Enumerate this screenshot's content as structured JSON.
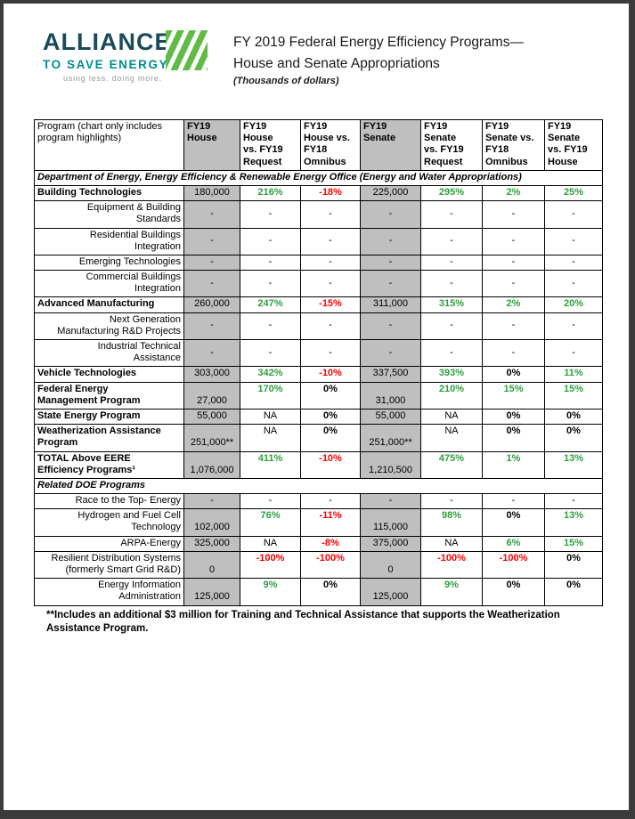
{
  "logo": {
    "name_line1": "ALLIANCE",
    "name_line2": "TO SAVE ENERGY",
    "tagline": "using less. doing more."
  },
  "title": {
    "line1": "FY 2019 Federal Energy Efficiency Programs—",
    "line2": "House and Senate Appropriations",
    "subtitle": "(Thousands of dollars)"
  },
  "colors": {
    "positive": "#2f9e41",
    "negative": "#ff0000",
    "column_shading": "#bfbfbf",
    "logo_green": "#62bb46",
    "logo_teal": "#008c95",
    "logo_navy": "#1b4a5a"
  },
  "table": {
    "headers": [
      "Program (chart only includes program highlights)",
      "FY19\nHouse",
      "FY19\nHouse\nvs. FY19\nRequest",
      "FY19\nHouse vs.\nFY18\nOmnibus",
      "FY19\nSenate",
      "FY19\nSenate\nvs. FY19\nRequest",
      "FY19\nSenate vs.\nFY18\nOmnibus",
      "FY19\nSenate\nvs. FY19\nHouse"
    ],
    "body": [
      {
        "type": "section",
        "label": "Department of Energy, Energy Efficiency & Renewable Energy Office (Energy and Water Appropriations)"
      },
      {
        "type": "row",
        "bold": true,
        "name": "Building Technologies",
        "cells": [
          {
            "t": "180,000",
            "k": "amt"
          },
          {
            "t": "216%",
            "k": "pos"
          },
          {
            "t": "-18%",
            "k": "neg"
          },
          {
            "t": "225,000",
            "k": "amt"
          },
          {
            "t": "295%",
            "k": "pos"
          },
          {
            "t": "2%",
            "k": "pos"
          },
          {
            "t": "25%",
            "k": "pos"
          }
        ]
      },
      {
        "type": "row",
        "bold": false,
        "name": "Equipment & Building\nStandards",
        "cells": [
          {
            "t": "-",
            "k": "dash"
          },
          {
            "t": "-",
            "k": "dash"
          },
          {
            "t": "-",
            "k": "dash"
          },
          {
            "t": "-",
            "k": "dash"
          },
          {
            "t": "-",
            "k": "dash"
          },
          {
            "t": "-",
            "k": "dash"
          },
          {
            "t": "-",
            "k": "dash"
          }
        ]
      },
      {
        "type": "row",
        "bold": false,
        "name": "Residential Buildings\nIntegration",
        "cells": [
          {
            "t": "-",
            "k": "dash"
          },
          {
            "t": "-",
            "k": "dash"
          },
          {
            "t": "-",
            "k": "dash"
          },
          {
            "t": "-",
            "k": "dash"
          },
          {
            "t": "-",
            "k": "dash"
          },
          {
            "t": "-",
            "k": "dash"
          },
          {
            "t": "-",
            "k": "dash"
          }
        ]
      },
      {
        "type": "row",
        "bold": false,
        "name": "Emerging Technologies",
        "cells": [
          {
            "t": "-",
            "k": "dash"
          },
          {
            "t": "-",
            "k": "dash"
          },
          {
            "t": "-",
            "k": "dash"
          },
          {
            "t": "-",
            "k": "dash"
          },
          {
            "t": "-",
            "k": "dash"
          },
          {
            "t": "-",
            "k": "dash"
          },
          {
            "t": "-",
            "k": "dash"
          }
        ]
      },
      {
        "type": "row",
        "bold": false,
        "name": "Commercial Buildings\nIntegration",
        "cells": [
          {
            "t": "-",
            "k": "dash"
          },
          {
            "t": "-",
            "k": "dash"
          },
          {
            "t": "-",
            "k": "dash"
          },
          {
            "t": "-",
            "k": "dash"
          },
          {
            "t": "-",
            "k": "dash"
          },
          {
            "t": "-",
            "k": "dash"
          },
          {
            "t": "-",
            "k": "dash"
          }
        ]
      },
      {
        "type": "row",
        "bold": true,
        "name": "Advanced Manufacturing",
        "cells": [
          {
            "t": "260,000",
            "k": "amt"
          },
          {
            "t": "247%",
            "k": "pos"
          },
          {
            "t": "-15%",
            "k": "neg"
          },
          {
            "t": "311,000",
            "k": "amt"
          },
          {
            "t": "315%",
            "k": "pos"
          },
          {
            "t": "2%",
            "k": "pos"
          },
          {
            "t": "20%",
            "k": "pos"
          }
        ]
      },
      {
        "type": "row",
        "bold": false,
        "name": "Next Generation\nManufacturing R&D Projects",
        "cells": [
          {
            "t": "-",
            "k": "dash"
          },
          {
            "t": "-",
            "k": "dash"
          },
          {
            "t": "-",
            "k": "dash"
          },
          {
            "t": "-",
            "k": "dash"
          },
          {
            "t": "-",
            "k": "dash"
          },
          {
            "t": "-",
            "k": "dash"
          },
          {
            "t": "-",
            "k": "dash"
          }
        ]
      },
      {
        "type": "row",
        "bold": false,
        "name": "Industrial Technical\nAssistance",
        "cells": [
          {
            "t": "-",
            "k": "dash"
          },
          {
            "t": "-",
            "k": "dash"
          },
          {
            "t": "-",
            "k": "dash"
          },
          {
            "t": "-",
            "k": "dash"
          },
          {
            "t": "-",
            "k": "dash"
          },
          {
            "t": "-",
            "k": "dash"
          },
          {
            "t": "-",
            "k": "dash"
          }
        ]
      },
      {
        "type": "row",
        "bold": true,
        "name": "Vehicle Technologies",
        "cells": [
          {
            "t": "303,000",
            "k": "amt"
          },
          {
            "t": "342%",
            "k": "pos"
          },
          {
            "t": "-10%",
            "k": "neg"
          },
          {
            "t": "337,500",
            "k": "amt"
          },
          {
            "t": "393%",
            "k": "pos"
          },
          {
            "t": "0%",
            "k": "pct"
          },
          {
            "t": "11%",
            "k": "pos"
          }
        ]
      },
      {
        "type": "row",
        "bold": true,
        "name": "Federal Energy\nManagement Program",
        "cells": [
          {
            "t": "27,000",
            "k": "amt"
          },
          {
            "t": "170%",
            "k": "pos"
          },
          {
            "t": "0%",
            "k": "pct"
          },
          {
            "t": "31,000",
            "k": "amt"
          },
          {
            "t": "210%",
            "k": "pos"
          },
          {
            "t": "15%",
            "k": "pos"
          },
          {
            "t": "15%",
            "k": "pos"
          }
        ]
      },
      {
        "type": "row",
        "bold": true,
        "name": "State Energy Program",
        "cells": [
          {
            "t": "55,000",
            "k": "amt"
          },
          {
            "t": "NA",
            "k": "na"
          },
          {
            "t": "0%",
            "k": "pct"
          },
          {
            "t": "55,000",
            "k": "amt"
          },
          {
            "t": "NA",
            "k": "na"
          },
          {
            "t": "0%",
            "k": "pct"
          },
          {
            "t": "0%",
            "k": "pct"
          }
        ]
      },
      {
        "type": "row",
        "bold": true,
        "name": "Weatherization Assistance\nProgram",
        "cells": [
          {
            "t": "251,000**",
            "k": "amt"
          },
          {
            "t": "NA",
            "k": "na"
          },
          {
            "t": "0%",
            "k": "pct"
          },
          {
            "t": "251,000**",
            "k": "amt"
          },
          {
            "t": "NA",
            "k": "na"
          },
          {
            "t": "0%",
            "k": "pct"
          },
          {
            "t": "0%",
            "k": "pct"
          }
        ]
      },
      {
        "type": "row",
        "bold": true,
        "name": "TOTAL Above EERE\nEfficiency Programs¹",
        "cells": [
          {
            "t": "1,076,000",
            "k": "amt"
          },
          {
            "t": "411%",
            "k": "pos"
          },
          {
            "t": "-10%",
            "k": "neg"
          },
          {
            "t": "1,210,500",
            "k": "amt"
          },
          {
            "t": "475%",
            "k": "pos"
          },
          {
            "t": "1%",
            "k": "pos"
          },
          {
            "t": "13%",
            "k": "pos"
          }
        ]
      },
      {
        "type": "section",
        "label": "Related DOE Programs"
      },
      {
        "type": "row",
        "bold": false,
        "name": "Race to the Top- Energy",
        "cells": [
          {
            "t": "-",
            "k": "dash"
          },
          {
            "t": "-",
            "k": "dash"
          },
          {
            "t": "-",
            "k": "dash"
          },
          {
            "t": "-",
            "k": "dash"
          },
          {
            "t": "-",
            "k": "dash"
          },
          {
            "t": "-",
            "k": "dash"
          },
          {
            "t": "-",
            "k": "dash"
          }
        ]
      },
      {
        "type": "row",
        "bold": false,
        "name": "Hydrogen and Fuel Cell\nTechnology",
        "cells": [
          {
            "t": "102,000",
            "k": "amt"
          },
          {
            "t": "76%",
            "k": "pos"
          },
          {
            "t": "-11%",
            "k": "neg"
          },
          {
            "t": "115,000",
            "k": "amt"
          },
          {
            "t": "98%",
            "k": "pos"
          },
          {
            "t": "0%",
            "k": "pct"
          },
          {
            "t": "13%",
            "k": "pos"
          }
        ]
      },
      {
        "type": "row",
        "bold": false,
        "name": "ARPA-Energy",
        "cells": [
          {
            "t": "325,000",
            "k": "amt"
          },
          {
            "t": "NA",
            "k": "na"
          },
          {
            "t": "-8%",
            "k": "neg"
          },
          {
            "t": "375,000",
            "k": "amt"
          },
          {
            "t": "NA",
            "k": "na"
          },
          {
            "t": "6%",
            "k": "pos"
          },
          {
            "t": "15%",
            "k": "pos"
          }
        ]
      },
      {
        "type": "row",
        "bold": false,
        "name": "Resilient Distribution Systems\n(formerly Smart Grid R&D)",
        "cells": [
          {
            "t": "0",
            "k": "amt"
          },
          {
            "t": "-100%",
            "k": "neg"
          },
          {
            "t": "-100%",
            "k": "neg"
          },
          {
            "t": "0",
            "k": "amt"
          },
          {
            "t": "-100%",
            "k": "neg"
          },
          {
            "t": "-100%",
            "k": "neg"
          },
          {
            "t": "0%",
            "k": "pct"
          }
        ]
      },
      {
        "type": "row",
        "bold": false,
        "name": "Energy Information\nAdministration",
        "cells": [
          {
            "t": "125,000",
            "k": "amt"
          },
          {
            "t": "9%",
            "k": "pos"
          },
          {
            "t": "0%",
            "k": "pct"
          },
          {
            "t": "125,000",
            "k": "amt"
          },
          {
            "t": "9%",
            "k": "pos"
          },
          {
            "t": "0%",
            "k": "pct"
          },
          {
            "t": "0%",
            "k": "pct"
          }
        ]
      }
    ]
  },
  "footnote": "**Includes an additional $3 million for Training and Technical Assistance that supports the Weatherization Assistance Program."
}
